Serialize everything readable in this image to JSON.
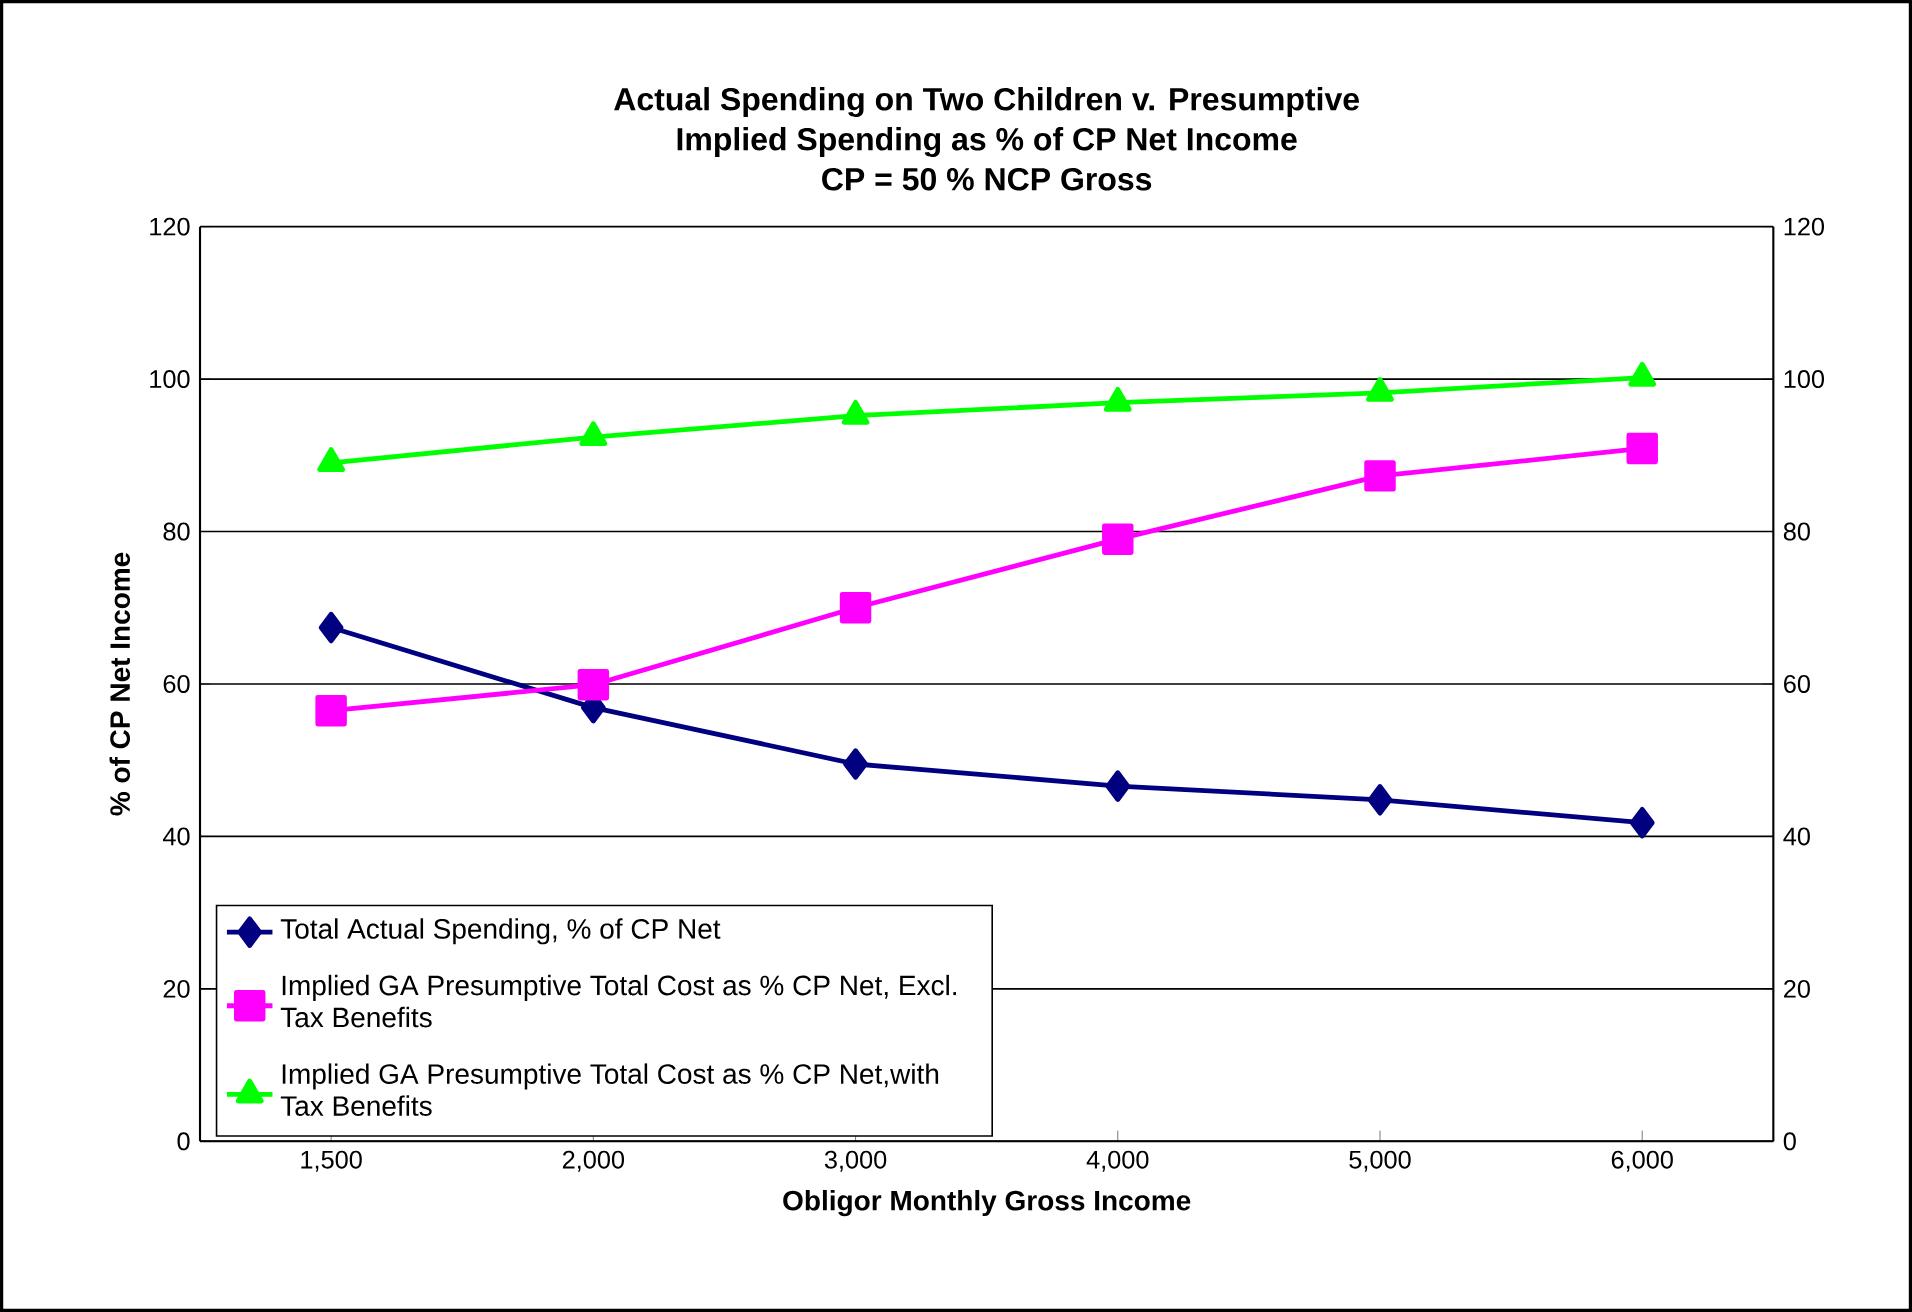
{
  "chart_data": {
    "type": "line",
    "title": "Actual Spending on Two Children v. Presumptive\nImplied Spending as % of CP Net Income\nCP = 50 % NCP Gross",
    "xlabel": "Obligor Monthly Gross Income",
    "ylabel": "% of CP Net Income",
    "categories": [
      "1,500",
      "2,000",
      "3,000",
      "4,000",
      "5,000",
      "6,000"
    ],
    "series": [
      {
        "name": "Total Actual Spending, % of CP Net",
        "color": "#000080",
        "marker": "diamond",
        "values": [
          67.4,
          56.9,
          49.5,
          46.6,
          44.8,
          41.8
        ]
      },
      {
        "name": "Implied GA Presumptive Total Cost as % CP Net, Excl. Tax Benefits",
        "color": "#ff00ff",
        "marker": "square",
        "values": [
          56.5,
          59.9,
          70.0,
          79.0,
          87.3,
          90.9
        ]
      },
      {
        "name": "Implied GA Presumptive Total Cost as % CP Net,with Tax Benefits",
        "color": "#00ff00",
        "marker": "triangle",
        "values": [
          89.0,
          92.4,
          95.2,
          96.9,
          98.2,
          100.2
        ]
      }
    ],
    "ylim": [
      0,
      120
    ],
    "yticks": [
      0,
      20,
      40,
      60,
      80,
      100,
      120
    ],
    "y2lim": [
      0,
      120
    ],
    "y2ticks": [
      0,
      20,
      40,
      60,
      80,
      100,
      120
    ],
    "grid": "y",
    "legend": "bottom left",
    "line_style": "solid"
  }
}
